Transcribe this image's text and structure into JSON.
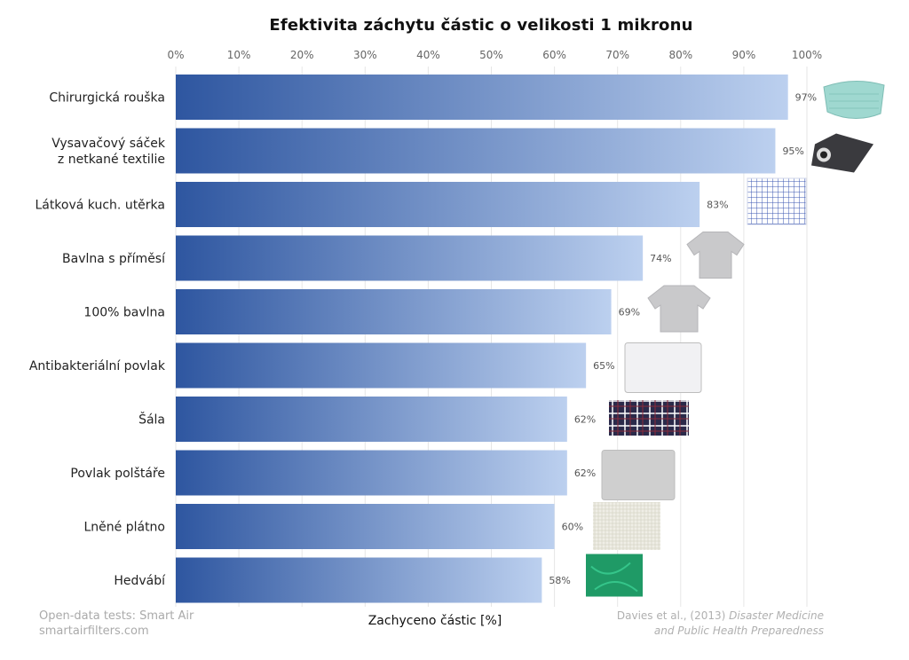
{
  "chart_data": {
    "type": "bar",
    "orientation": "horizontal",
    "title": "Efektivita záchytu částic o velikosti 1 mikronu",
    "xlabel": "Zachyceno částic [%]",
    "ylabel": "",
    "xlim": [
      0,
      100
    ],
    "xticks": [
      "0%",
      "10%",
      "20%",
      "30%",
      "40%",
      "50%",
      "60%",
      "70%",
      "80%",
      "90%",
      "100%"
    ],
    "xtick_values": [
      0,
      10,
      20,
      30,
      40,
      50,
      60,
      70,
      80,
      90,
      100
    ],
    "axis_position": "top",
    "grid": true,
    "categories": [
      "Chirurgická rouška",
      "Vysavačový sáček\nz netkané textilie",
      "Látková kuch. utěrka",
      "Bavlna s příměsí",
      "100% bavlna",
      "Antibakteriální povlak",
      "Šála",
      "Povlak polštáře",
      "Lněné plátno",
      "Hedvábí"
    ],
    "values": [
      97,
      95,
      83,
      74,
      69,
      65,
      62,
      62,
      60,
      58
    ],
    "value_labels": [
      "97%",
      "95%",
      "83%",
      "74%",
      "69%",
      "65%",
      "62%",
      "62%",
      "60%",
      "58%"
    ],
    "icons": [
      "surgical-mask-icon",
      "vacuum-bag-icon",
      "tea-towel-icon",
      "tshirt-icon",
      "tshirt-icon",
      "pillowcase-icon",
      "scarf-icon",
      "pillowcase-icon",
      "linen-icon",
      "silk-icon"
    ],
    "colors": {
      "bar_gradient_start": "#2e56a0",
      "bar_gradient_end": "#bcd0ef",
      "grid": "#e6e6e6",
      "tick_label": "#666666",
      "category_label": "#222222",
      "value_label": "#555555"
    }
  },
  "credits": {
    "left_line1": "Open-data tests: Smart Air",
    "left_line2": "smartairfilters.com",
    "right_line1_plain": "Davies et al., (2013)",
    "right_line1_italic": "Disaster Medicine",
    "right_line2_italic": "and Public Health Preparedness"
  }
}
